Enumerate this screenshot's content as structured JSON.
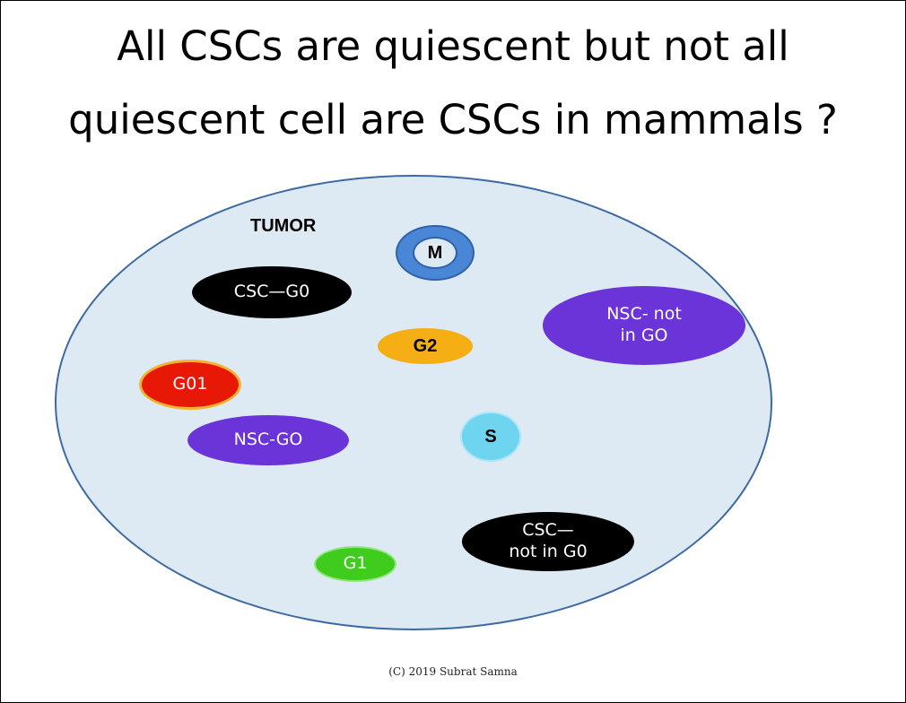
{
  "title": {
    "line1": "All CSCs are quiescent but not all",
    "line2": "quiescent cell are CSCs in mammals ?"
  },
  "tumor": {
    "label": "TUMOR",
    "fill_color": "#dde9f3",
    "border_color": "#3d6aa3"
  },
  "cells": {
    "m": {
      "label": "M",
      "color": "#4a86d6"
    },
    "csc_g0": {
      "label": "CSC—G0",
      "color": "#000000"
    },
    "nsc_not_g0": {
      "line1": "NSC- not",
      "line2": "in GO",
      "color": "#6a34d8"
    },
    "g2": {
      "label": "G2",
      "color": "#f6ae15"
    },
    "g01": {
      "label": "G01",
      "color": "#e81806"
    },
    "s": {
      "label": "S",
      "color": "#6fd4ef"
    },
    "nsc_g0": {
      "label": "NSC-GO",
      "color": "#6a34d8"
    },
    "csc_not_g0": {
      "line1": "CSC—",
      "line2": "not in G0",
      "color": "#000000"
    },
    "g1": {
      "label": "G1",
      "color": "#3fcc1d"
    }
  },
  "footer": {
    "copyright": "(C) 2019 Subrat Samna"
  }
}
